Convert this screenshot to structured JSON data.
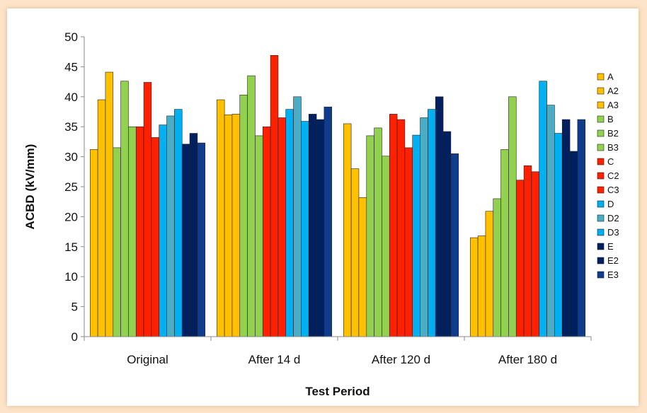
{
  "chart_data": {
    "type": "bar",
    "title": "",
    "xlabel": "Test Period",
    "ylabel": "ACBD (kV/mm)",
    "ylim": [
      0,
      50
    ],
    "yticks": [
      0,
      5,
      10,
      15,
      20,
      25,
      30,
      35,
      40,
      45,
      50
    ],
    "categories": [
      "Original",
      "After 14 d",
      "After 120 d",
      "After 180 d"
    ],
    "grid": false,
    "legend_position": "right",
    "series": [
      {
        "name": "A",
        "color": "#ffc000",
        "values": [
          31.2,
          39.5,
          35.5,
          16.5
        ]
      },
      {
        "name": "A2",
        "color": "#ffc000",
        "values": [
          39.5,
          37.0,
          28.0,
          16.8
        ]
      },
      {
        "name": "A3",
        "color": "#ffc000",
        "values": [
          44.1,
          37.1,
          23.2,
          20.9
        ]
      },
      {
        "name": "B",
        "color": "#92d050",
        "values": [
          31.5,
          40.3,
          33.5,
          23.0
        ]
      },
      {
        "name": "B2",
        "color": "#92d050",
        "values": [
          42.6,
          43.5,
          34.8,
          31.2
        ]
      },
      {
        "name": "B3",
        "color": "#92d050",
        "values": [
          35.0,
          33.5,
          30.1,
          40.0
        ]
      },
      {
        "name": "C",
        "color": "#ff2000",
        "values": [
          35.0,
          35.0,
          37.1,
          26.1
        ]
      },
      {
        "name": "C2",
        "color": "#ff2000",
        "values": [
          42.4,
          46.9,
          36.2,
          28.5
        ]
      },
      {
        "name": "C3",
        "color": "#ff2000",
        "values": [
          33.2,
          36.5,
          31.5,
          27.5
        ]
      },
      {
        "name": "D",
        "color": "#00b0f0",
        "values": [
          35.3,
          37.9,
          33.6,
          42.6
        ]
      },
      {
        "name": "D2",
        "color": "#4bacc6",
        "values": [
          36.8,
          40.0,
          36.5,
          38.6
        ]
      },
      {
        "name": "D3",
        "color": "#00b0f0",
        "values": [
          37.9,
          35.9,
          37.9,
          33.9
        ]
      },
      {
        "name": "E",
        "color": "#002060",
        "values": [
          32.1,
          37.1,
          40.0,
          36.2
        ]
      },
      {
        "name": "E2",
        "color": "#002060",
        "values": [
          33.9,
          36.2,
          34.2,
          30.9
        ]
      },
      {
        "name": "E3",
        "color": "#0f3c8c",
        "values": [
          32.3,
          38.3,
          30.5,
          36.2
        ]
      }
    ]
  }
}
